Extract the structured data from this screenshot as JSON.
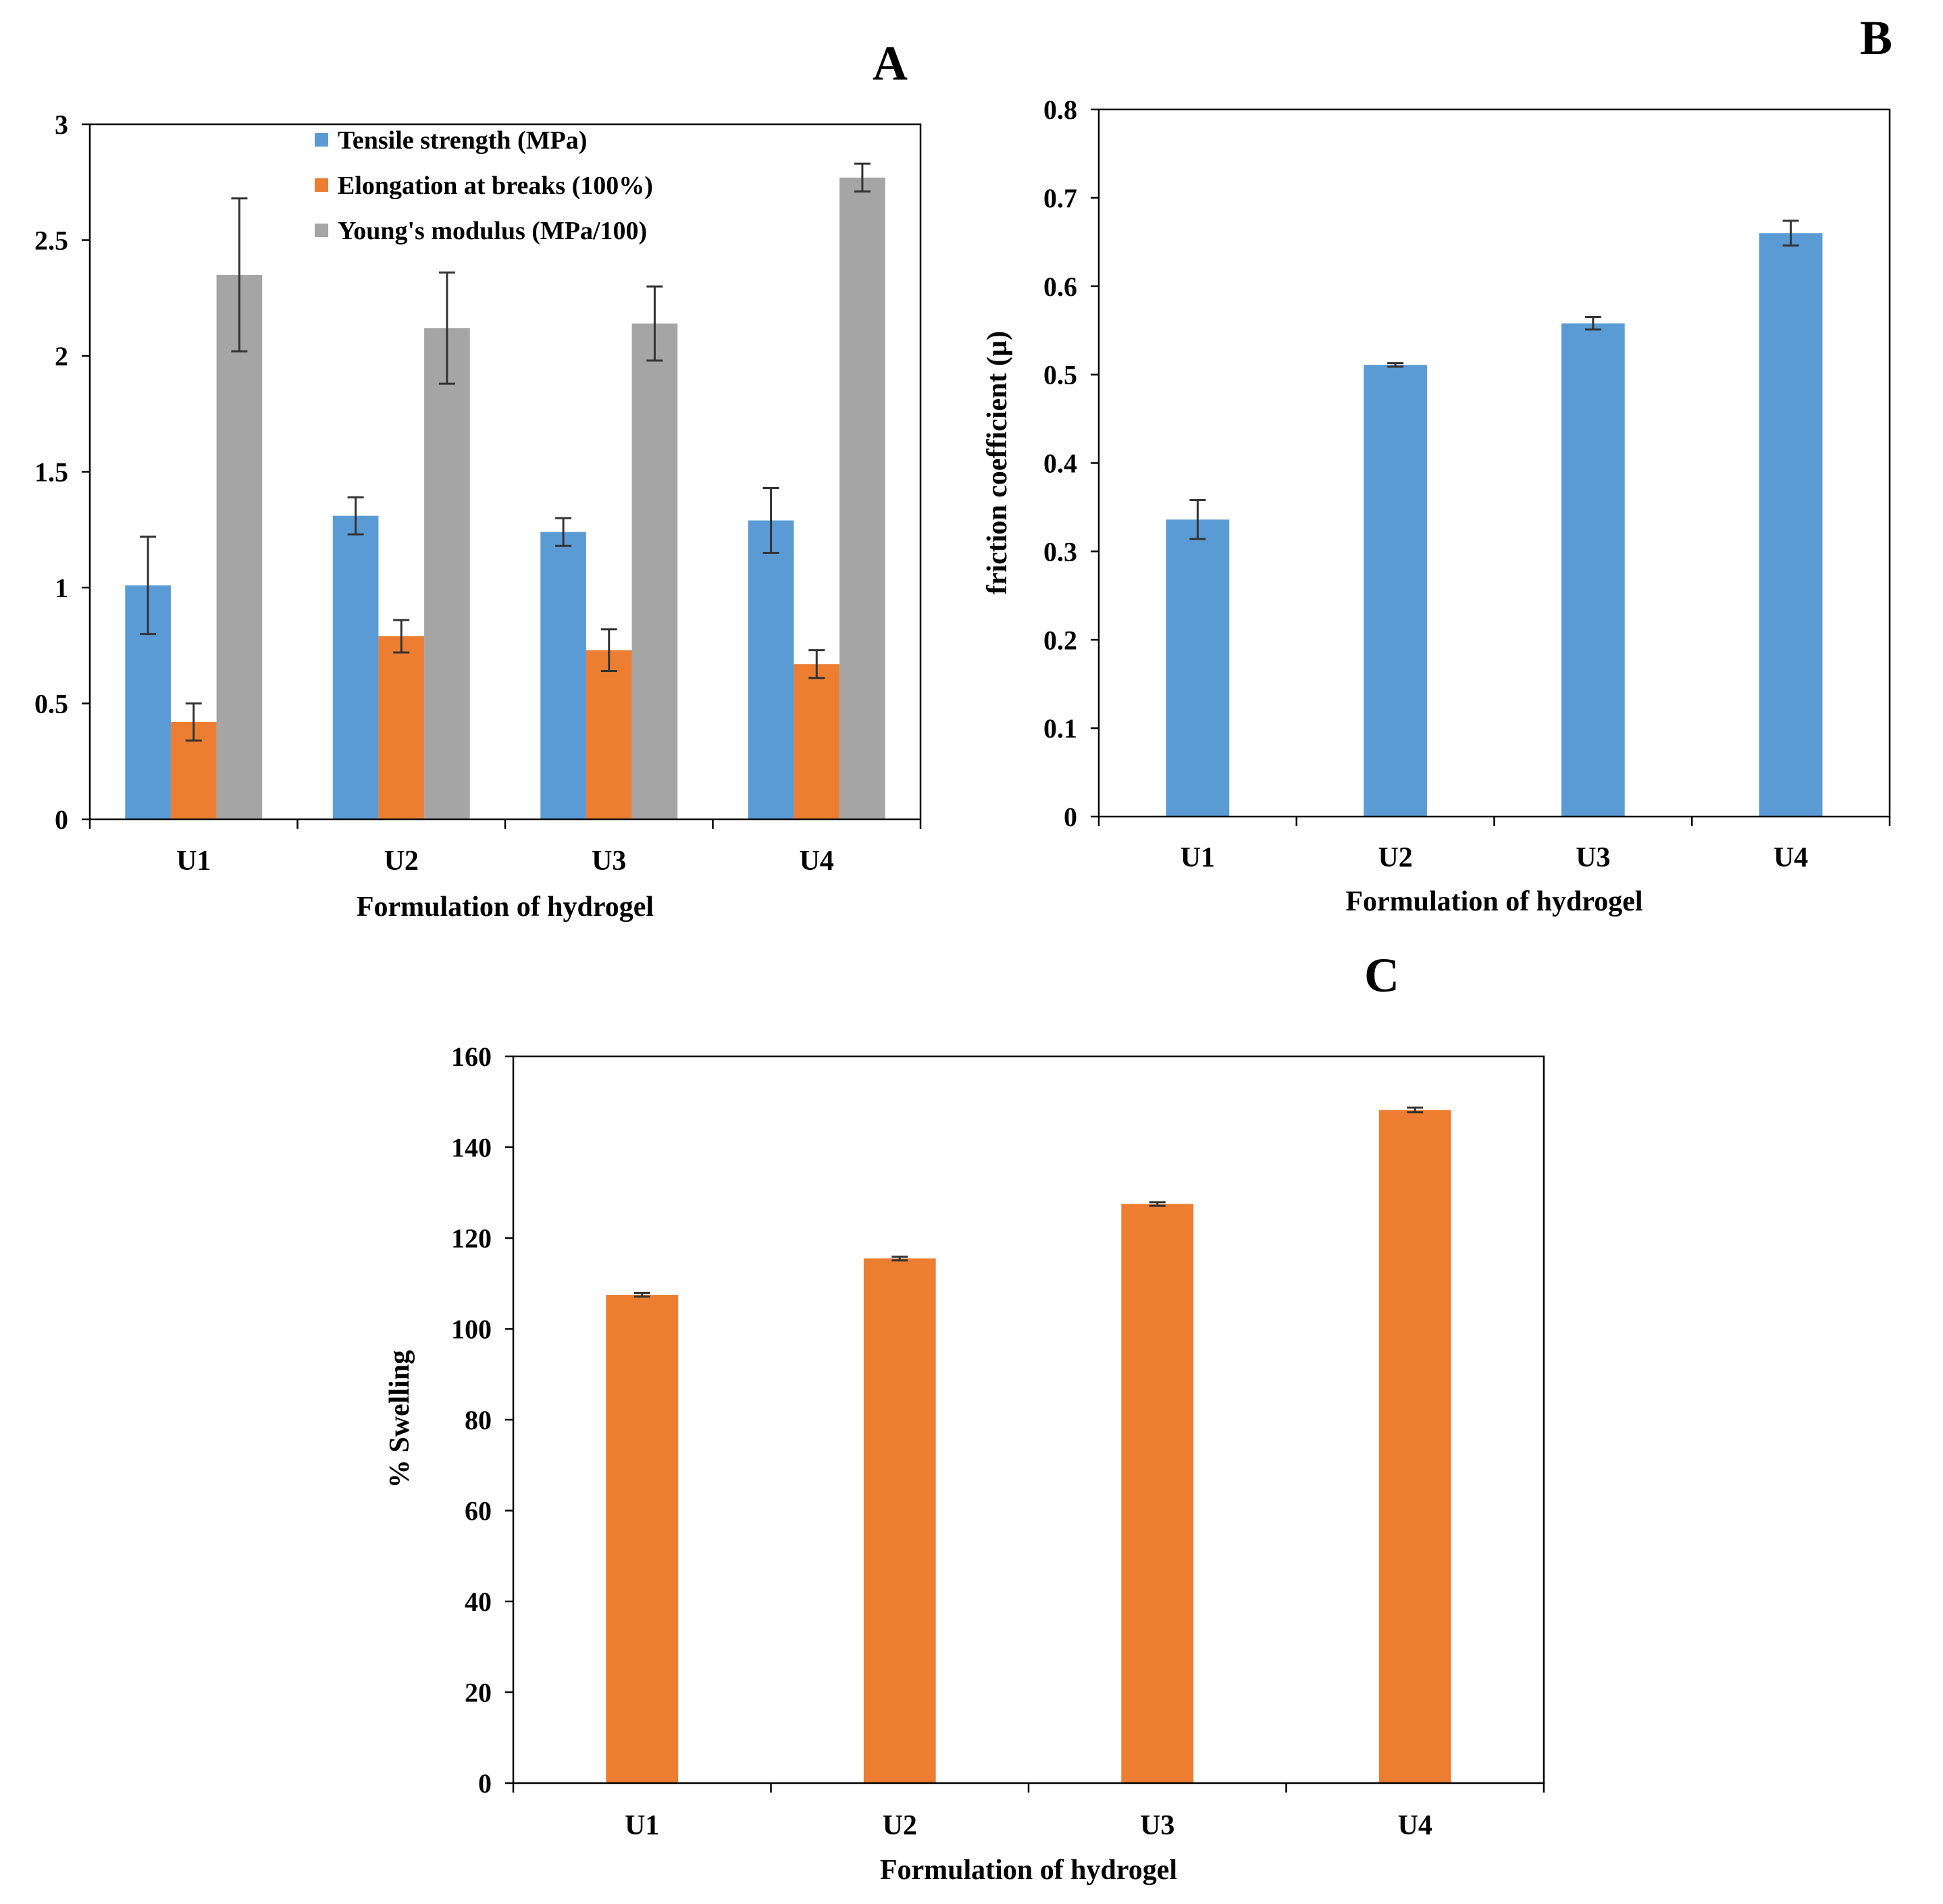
{
  "colors": {
    "blue": "#5B9BD5",
    "orange": "#ED7D31",
    "gray": "#A5A5A5",
    "axis": "#000000",
    "errorbar": "#333333"
  },
  "chart_data": [
    {
      "panel": "A",
      "type": "bar",
      "title": "",
      "xlabel": "Formulation of hydrogel",
      "ylabel": "",
      "categories": [
        "U1",
        "U2",
        "U3",
        "U4"
      ],
      "ylim": [
        0,
        3
      ],
      "yticks": [
        0,
        0.5,
        1,
        1.5,
        2,
        2.5,
        3
      ],
      "ytick_labels": [
        "0",
        "0.5",
        "1",
        "1.5",
        "2",
        "2.5",
        "3"
      ],
      "grid": false,
      "legend_position": "top-left",
      "series": [
        {
          "name": "Tensile strength (MPa)",
          "color": "#5B9BD5",
          "values": [
            1.01,
            1.31,
            1.24,
            1.29
          ],
          "errors": [
            0.21,
            0.08,
            0.06,
            0.14
          ]
        },
        {
          "name": "Elongation at breaks (100%)",
          "color": "#ED7D31",
          "values": [
            0.42,
            0.79,
            0.73,
            0.67
          ],
          "errors": [
            0.08,
            0.07,
            0.09,
            0.06
          ]
        },
        {
          "name": "Young's modulus (MPa/100)",
          "color": "#A5A5A5",
          "values": [
            2.35,
            2.12,
            2.14,
            2.77
          ],
          "errors": [
            0.33,
            0.24,
            0.16,
            0.06
          ]
        }
      ]
    },
    {
      "panel": "B",
      "type": "bar",
      "title": "",
      "xlabel": "Formulation of hydrogel",
      "ylabel": "friction coefficient (µ)",
      "categories": [
        "U1",
        "U2",
        "U3",
        "U4"
      ],
      "ylim": [
        0,
        0.8
      ],
      "yticks": [
        0,
        0.1,
        0.2,
        0.3,
        0.4,
        0.5,
        0.6,
        0.7,
        0.8
      ],
      "ytick_labels": [
        "0",
        "0.1",
        "0.2",
        "0.3",
        "0.4",
        "0.5",
        "0.6",
        "0.7",
        "0.8"
      ],
      "grid": false,
      "series": [
        {
          "name": "friction coefficient",
          "color": "#5B9BD5",
          "values": [
            0.336,
            0.511,
            0.558,
            0.66
          ],
          "errors": [
            0.022,
            0.002,
            0.007,
            0.014
          ]
        }
      ]
    },
    {
      "panel": "C",
      "type": "bar",
      "title": "",
      "xlabel": "Formulation of hydrogel",
      "ylabel": "% Swelling",
      "categories": [
        "U1",
        "U2",
        "U3",
        "U4"
      ],
      "ylim": [
        0,
        160
      ],
      "yticks": [
        0,
        20,
        40,
        60,
        80,
        100,
        120,
        140,
        160
      ],
      "ytick_labels": [
        "0",
        "20",
        "40",
        "60",
        "80",
        "100",
        "120",
        "140",
        "160"
      ],
      "grid": false,
      "series": [
        {
          "name": "% Swelling",
          "color": "#ED7D31",
          "values": [
            107.5,
            115.5,
            127.5,
            148.2
          ],
          "errors": [
            0.4,
            0.4,
            0.4,
            0.5
          ]
        }
      ]
    }
  ]
}
